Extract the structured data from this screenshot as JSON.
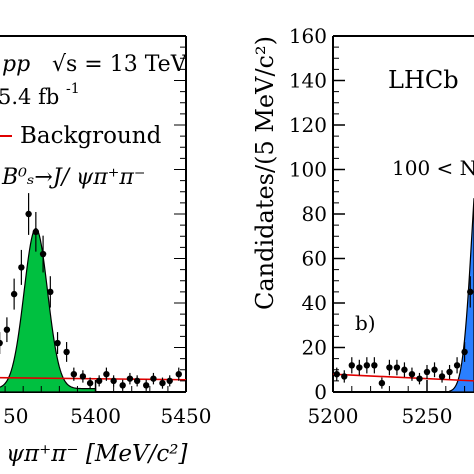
{
  "chart_data": [
    {
      "type": "scatter",
      "panel": "left",
      "title": "",
      "text_labels": {
        "pp": "pp",
        "sqrt_s": "√s = 13 TeV",
        "lumi": "5.4 fb",
        "lumi_sup": "-1",
        "legend_background": "Background",
        "legend_signal": "B⁰ₛ→J/ ψπ⁺π⁻",
        "xlabel": "ψπ⁺π⁻ [MeV/c²]"
      },
      "xticks": [
        "5400",
        "5450"
      ],
      "partial_xtick": "50",
      "xlim": [
        5340,
        5450
      ],
      "ylim": [
        0,
        160
      ],
      "series": [
        {
          "name": "Background",
          "kind": "line",
          "color": "#e00000",
          "values": [
            [
              5340,
              6.5
            ],
            [
              5450,
              5.5
            ]
          ]
        },
        {
          "name": "B⁰ₛ→J/ ψπ⁺π⁻",
          "kind": "area",
          "color": "#00c040",
          "peak_mass": 5367,
          "peak_height": 72,
          "width": 6.5
        },
        {
          "name": "data",
          "kind": "points",
          "values": [
            [
              5342,
              33
            ],
            [
              5347,
              22
            ],
            [
              5351,
              28
            ],
            [
              5355,
              44
            ],
            [
              5359,
              56
            ],
            [
              5363,
              80
            ],
            [
              5367,
              72
            ],
            [
              5371,
              62
            ],
            [
              5375,
              45
            ],
            [
              5379,
              22
            ],
            [
              5384,
              18
            ],
            [
              5388,
              8
            ],
            [
              5393,
              7
            ],
            [
              5397,
              4
            ],
            [
              5402,
              5
            ],
            [
              5406,
              8
            ],
            [
              5410,
              5
            ],
            [
              5415,
              3
            ],
            [
              5419,
              6
            ],
            [
              5423,
              5
            ],
            [
              5428,
              3
            ],
            [
              5432,
              6
            ],
            [
              5437,
              4
            ],
            [
              5441,
              5
            ],
            [
              5446,
              8
            ]
          ]
        }
      ]
    },
    {
      "type": "scatter",
      "panel": "right",
      "title": "",
      "text_labels": {
        "lhcb": "LHCb",
        "bin": "100 < N",
        "panel_tag": "b)",
        "ylabel": "Candidates/(5 MeV/c²)"
      },
      "xticks": [
        "5200",
        "5250"
      ],
      "yticks": [
        "0",
        "20",
        "40",
        "60",
        "80",
        "100",
        "120",
        "140",
        "160"
      ],
      "xlim": [
        5200,
        5275
      ],
      "ylim": [
        0,
        160
      ],
      "series": [
        {
          "name": "Background",
          "kind": "line",
          "color": "#e00000",
          "values": [
            [
              5200,
              8
            ],
            [
              5275,
              5
            ]
          ]
        },
        {
          "name": "signal",
          "kind": "area",
          "color": "#2a7fff"
        },
        {
          "name": "data",
          "kind": "points",
          "values": [
            [
              5202,
              8
            ],
            [
              5206,
              7
            ],
            [
              5210,
              12
            ],
            [
              5214,
              11
            ],
            [
              5218,
              12
            ],
            [
              5222,
              12
            ],
            [
              5226,
              4
            ],
            [
              5230,
              11
            ],
            [
              5234,
              11
            ],
            [
              5238,
              10
            ],
            [
              5242,
              8
            ],
            [
              5246,
              6
            ],
            [
              5250,
              9
            ],
            [
              5254,
              10
            ],
            [
              5258,
              7
            ],
            [
              5262,
              9
            ],
            [
              5266,
              12
            ],
            [
              5270,
              18
            ],
            [
              5273,
              45
            ]
          ]
        }
      ]
    }
  ]
}
